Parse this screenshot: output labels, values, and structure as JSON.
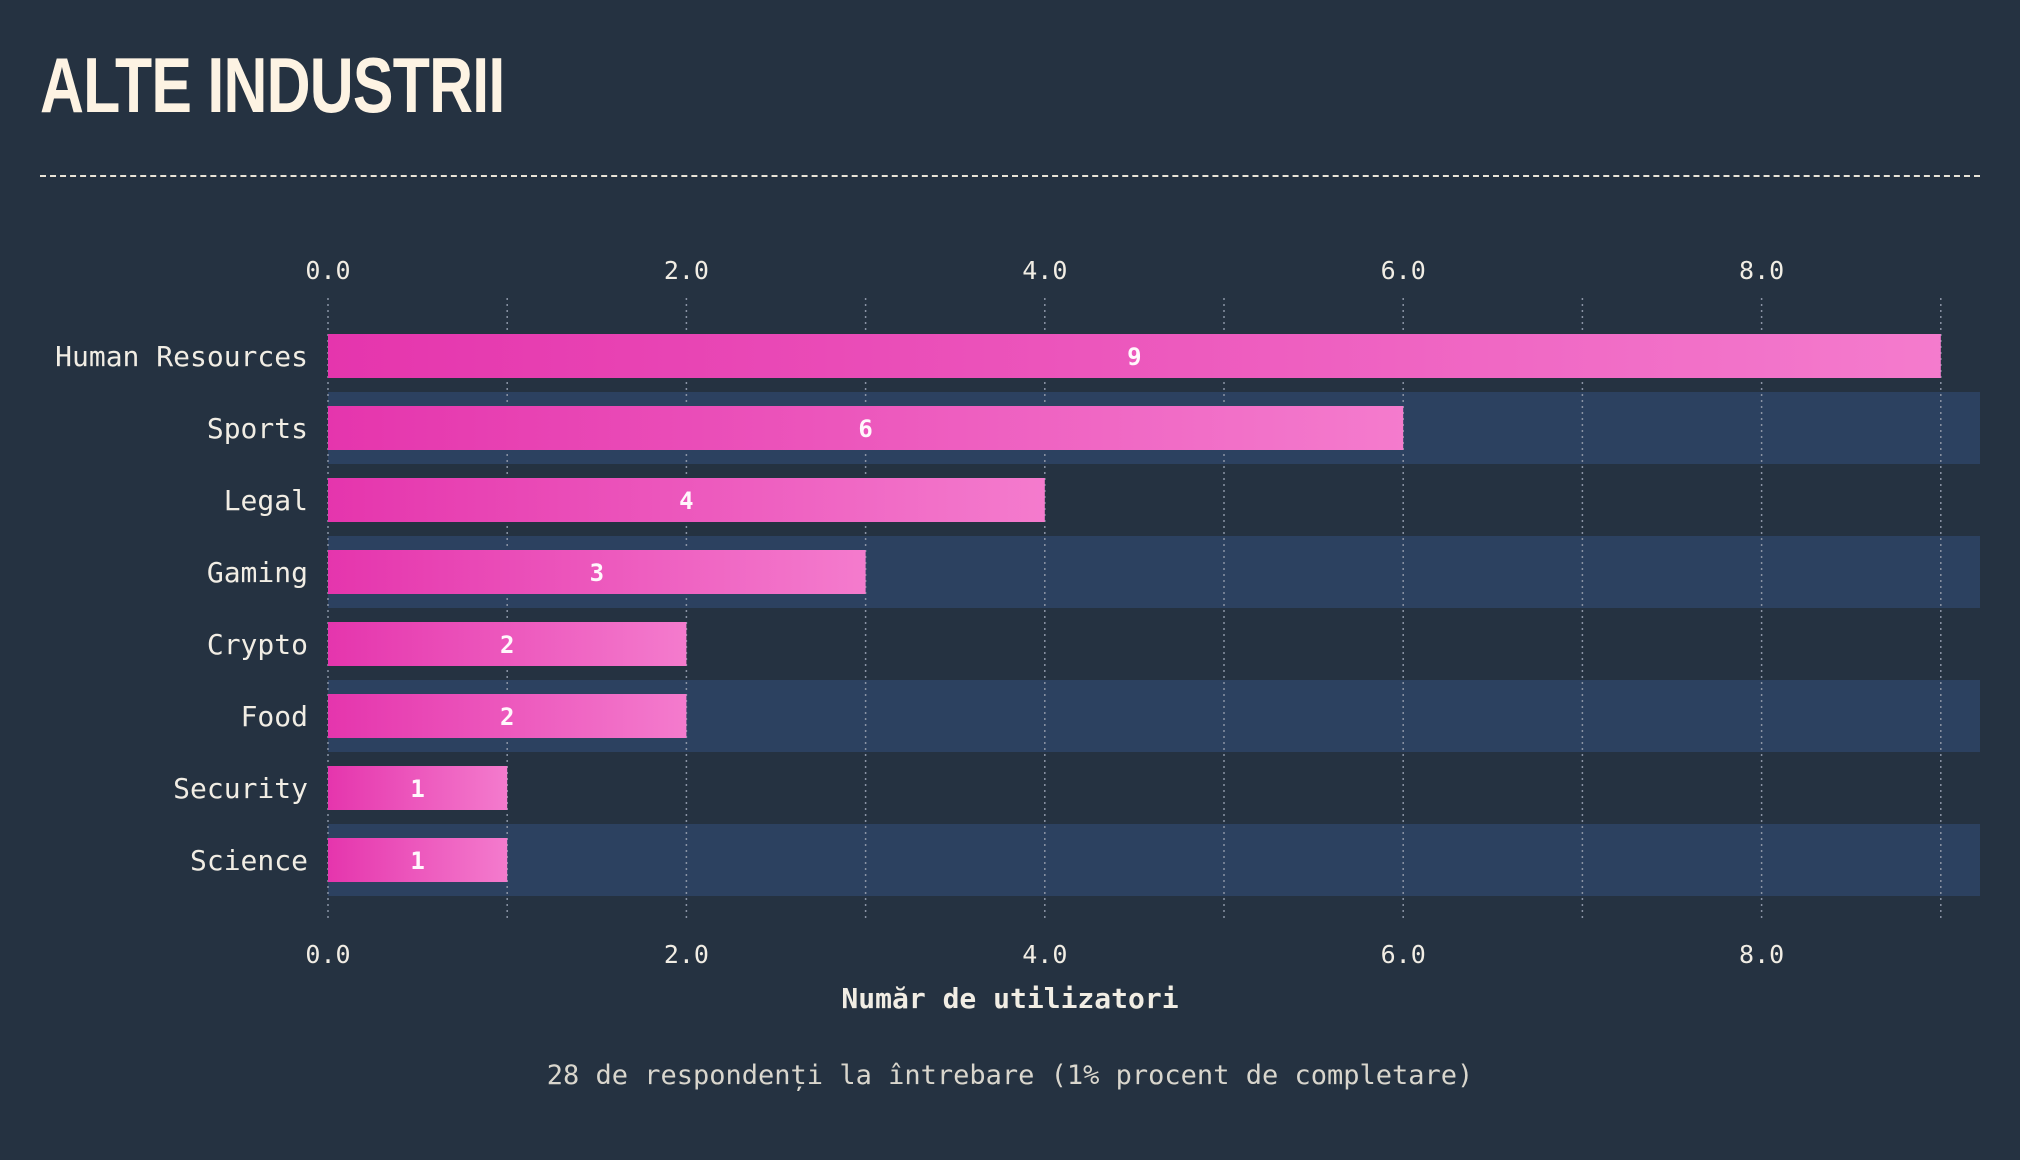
{
  "header": {
    "title": "ALTE INDUSTRII"
  },
  "footer": {
    "caption": "28 de respondenți la întrebare (1% procent de completare)"
  },
  "colors": {
    "background": "#253241",
    "band": "#2c4160",
    "bar_start": "#e535ad",
    "bar_end": "#f47bcd",
    "text": "#f1ede4",
    "grid": "#8a93a4"
  },
  "chart_data": {
    "type": "bar",
    "orientation": "horizontal",
    "categories": [
      "Human Resources",
      "Sports",
      "Legal",
      "Gaming",
      "Crypto",
      "Food",
      "Security",
      "Science"
    ],
    "values": [
      9,
      6,
      4,
      3,
      2,
      2,
      1,
      1
    ],
    "xlabel": "Număr de utilizatori",
    "xlim": [
      0,
      9.22
    ],
    "x_ticks": [
      "0.0",
      "2.0",
      "4.0",
      "6.0",
      "8.0"
    ],
    "x_tick_values": [
      0,
      2,
      4,
      6,
      8
    ],
    "grid": true,
    "grid_step": 1,
    "data_labels": [
      "9",
      "6",
      "4",
      "3",
      "2",
      "2",
      "1",
      "1"
    ]
  }
}
